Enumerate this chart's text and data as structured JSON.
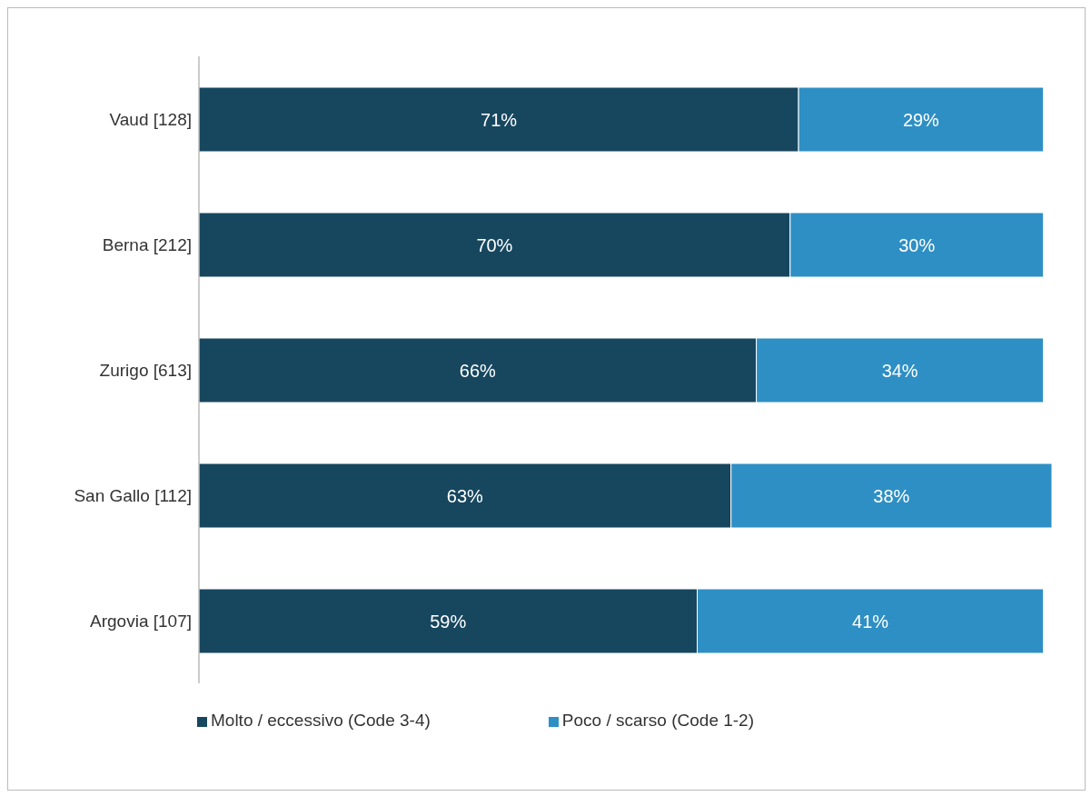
{
  "chart_data": {
    "type": "bar",
    "orientation": "horizontal",
    "stacked": true,
    "tick_labels": "y",
    "legend": "bottom",
    "categories": [
      "Vaud [128]",
      "Berna [212]",
      "Zurigo [613]",
      "San Gallo [112]",
      "Argovia [107]"
    ],
    "series": [
      {
        "name": "Molto / eccessivo (Code 3-4)",
        "color": "#17475f",
        "values": [
          71,
          70,
          66,
          63,
          59
        ],
        "value_labels": [
          "71%",
          "70%",
          "66%",
          "63%",
          "59%"
        ]
      },
      {
        "name": "Poco / scarso (Code 1-2)",
        "color": "#2e8fc4",
        "values": [
          29,
          30,
          34,
          38,
          41
        ],
        "value_labels": [
          "29%",
          "30%",
          "34%",
          "38%",
          "41%"
        ]
      }
    ]
  }
}
